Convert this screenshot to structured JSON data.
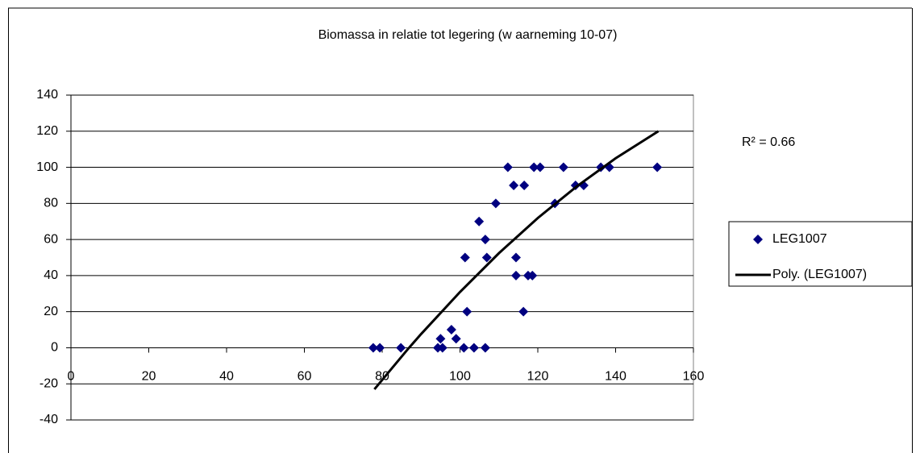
{
  "chart_data": {
    "type": "scatter",
    "title": "Biomassa in relatie tot legering (w aarneming 10-07)",
    "annotation": "R² = 0.66",
    "xlim": [
      0,
      160
    ],
    "xticks": [
      0,
      20,
      40,
      60,
      80,
      100,
      120,
      140,
      160
    ],
    "ylim": [
      -40,
      140
    ],
    "yticks": [
      -40,
      -20,
      0,
      20,
      40,
      60,
      80,
      100,
      120,
      140
    ],
    "grid": true,
    "legend": "right",
    "series": [
      {
        "name": "LEG1007",
        "color": "#000080",
        "x": [
          77.7,
          79.4,
          84.8,
          94.3,
          95.5,
          95,
          97.8,
          99,
          101,
          103.6,
          106.5,
          101.3,
          101.8,
          104.9,
          106.5,
          106.9,
          109.2,
          112.3,
          113.8,
          116.5,
          114.4,
          114.4,
          117.5,
          118.6,
          116.3,
          119,
          120.6,
          126.6,
          124.4,
          129.7,
          131.8,
          136.2,
          138.4,
          150.7
        ],
        "values": [
          0,
          0,
          0,
          0,
          0,
          5,
          10,
          5,
          0,
          0,
          0,
          50,
          20,
          70,
          60,
          50,
          80,
          100,
          90,
          90,
          50,
          40,
          40,
          40,
          20,
          100,
          100,
          100,
          80,
          90,
          90,
          100,
          100,
          100
        ]
      },
      {
        "name": "Poly. (LEG1007)",
        "color": "#000000",
        "x": [
          78,
          86.5,
          90,
          100,
          110,
          120,
          130,
          140,
          151
        ],
        "values": [
          -23,
          -1,
          7.6,
          30.9,
          52.4,
          71.9,
          89.4,
          105,
          120
        ]
      }
    ]
  }
}
